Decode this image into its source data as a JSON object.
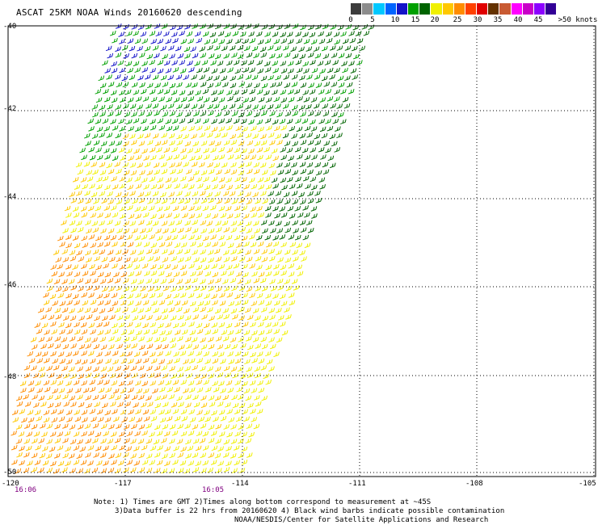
{
  "title": "ASCAT 25KM NOAA Winds 20160620 descending",
  "color_scale": {
    "colors": [
      "#3c3c3c",
      "#8c8c8c",
      "#00c8ff",
      "#0064ff",
      "#1414c8",
      "#00a000",
      "#006400",
      "#f0f000",
      "#ffc800",
      "#ff8c00",
      "#ff4000",
      "#e00000",
      "#643200",
      "#c85a32",
      "#ff00ff",
      "#c800c8",
      "#8c00ff",
      "#320096"
    ],
    "labels": [
      "0",
      "5",
      "10",
      "15",
      "20",
      "25",
      "30",
      "35",
      "40",
      "45",
      ">50 knots"
    ]
  },
  "map": {
    "lon_labels": [
      "-120",
      "-117",
      "-114",
      "-111",
      "-108",
      "-105"
    ],
    "lat_labels": [
      "-40",
      "-42",
      "-44",
      "-46",
      "-48",
      "-50"
    ],
    "lon_range": [
      -120,
      -105
    ],
    "lat_range": [
      -50,
      -40
    ],
    "pass_times": [
      "16:06",
      "16:05"
    ]
  },
  "notes": {
    "line1": "Note: 1) Times are GMT 2)Times along bottom correspond to measurement at ~45S",
    "line2": "3)Data buffer is 22 hrs from 20160620 4) Black wind barbs indicate possible contamination",
    "line3": "NOAA/NESDIS/Center for Satellite Applications and Research"
  }
}
